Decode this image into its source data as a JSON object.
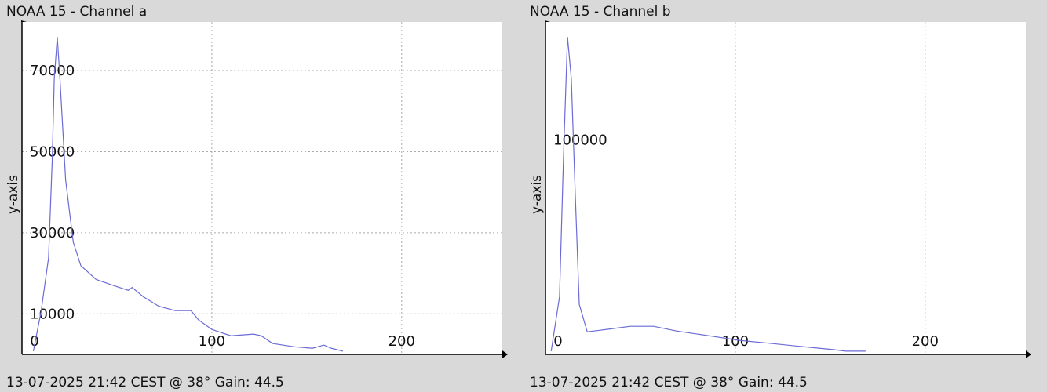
{
  "chart_data": [
    {
      "type": "line",
      "title": "NOAA 15 - Channel a",
      "y_label": "y-axis",
      "footer": "13-07-2025 21:42 CEST @ 38° Gain: 44.5",
      "xlim": [
        0,
        253
      ],
      "ylim": [
        0,
        82000
      ],
      "xticks": [
        0,
        100,
        200
      ],
      "yticks": [
        10000,
        30000,
        50000,
        70000
      ],
      "grid": true,
      "x": [
        6,
        10,
        14,
        16,
        17,
        18.6,
        20,
        23,
        27,
        31,
        39,
        47.5,
        56,
        58,
        64,
        72,
        80.6,
        89,
        93,
        100,
        110,
        122,
        126,
        132,
        143,
        153,
        159,
        163,
        169
      ],
      "series": [
        {
          "color": "#6b6bd6",
          "values": [
            800,
            10400,
            23800,
            48800,
            68000,
            78300,
            68000,
            43000,
            27700,
            21900,
            18500,
            17100,
            15800,
            16500,
            14200,
            11900,
            10800,
            10800,
            8500,
            6150,
            4600,
            5000,
            4600,
            2700,
            1900,
            1500,
            2300,
            1500,
            800
          ]
        }
      ]
    },
    {
      "type": "line",
      "title": "NOAA 15 - Channel b",
      "y_label": "y-axis",
      "footer": "13-07-2025 21:42 CEST @ 38° Gain: 44.5",
      "xlim": [
        0,
        253
      ],
      "ylim": [
        0,
        155000
      ],
      "xticks": [
        0,
        100,
        200
      ],
      "yticks": [
        100000
      ],
      "grid": true,
      "x": [
        3,
        7.4,
        9.5,
        11.6,
        13.6,
        15.7,
        17.8,
        22,
        32,
        44.6,
        57,
        69,
        86,
        102.5,
        119,
        135.5,
        152,
        158,
        168.6
      ],
      "series": [
        {
          "color": "#6b6bd6",
          "values": [
            1500,
            26900,
            92400,
            148000,
            128700,
            74200,
            23300,
            10500,
            11600,
            13100,
            13100,
            10900,
            8700,
            6500,
            5100,
            3600,
            2200,
            1500,
            1500
          ]
        }
      ]
    }
  ]
}
